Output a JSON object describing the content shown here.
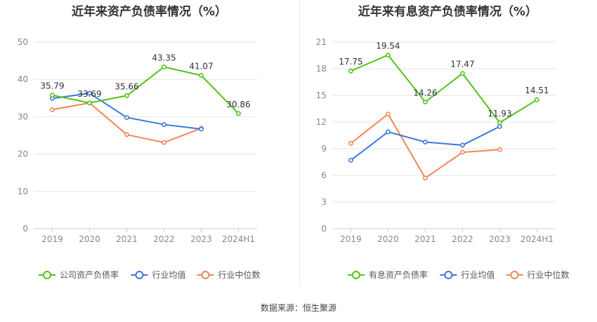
{
  "source_text": "数据来源：恒生聚源",
  "chart_data": [
    {
      "type": "line",
      "title": "近年来资产负债率情况（%）",
      "categories": [
        "2019",
        "2020",
        "2021",
        "2022",
        "2023",
        "2024H1"
      ],
      "yticks": [
        "0",
        "10",
        "20",
        "30",
        "40",
        "50"
      ],
      "ylim": [
        0,
        50
      ],
      "grid": true,
      "legend_position": "bottom",
      "series": [
        {
          "name": "公司资产负债率",
          "color": "#52c41a",
          "values": [
            35.79,
            33.69,
            35.66,
            43.35,
            41.07,
            30.86
          ],
          "labels": [
            "35.79",
            "33.69",
            "35.66",
            "43.35",
            "41.07",
            "30.86"
          ]
        },
        {
          "name": "行业均值",
          "color": "#3a78e0",
          "values": [
            34.9,
            36.3,
            29.8,
            27.9,
            26.7,
            null
          ],
          "labels": []
        },
        {
          "name": "行业中位数",
          "color": "#f0875a",
          "values": [
            31.9,
            33.7,
            25.2,
            23.1,
            26.9,
            null
          ],
          "labels": []
        }
      ]
    },
    {
      "type": "line",
      "title": "近年来有息资产负债率情况（%）",
      "categories": [
        "2019",
        "2020",
        "2021",
        "2022",
        "2023",
        "2024H1"
      ],
      "yticks": [
        "0",
        "3",
        "6",
        "9",
        "12",
        "15",
        "18",
        "21"
      ],
      "ylim": [
        0,
        21
      ],
      "grid": true,
      "legend_position": "bottom",
      "series": [
        {
          "name": "有息资产负债率",
          "color": "#52c41a",
          "values": [
            17.75,
            19.54,
            14.26,
            17.47,
            11.93,
            14.51
          ],
          "labels": [
            "17.75",
            "19.54",
            "14.26",
            "17.47",
            "11.93",
            "14.51"
          ]
        },
        {
          "name": "行业均值",
          "color": "#3a78e0",
          "values": [
            7.7,
            10.9,
            9.75,
            9.4,
            11.5,
            null
          ],
          "labels": []
        },
        {
          "name": "行业中位数",
          "color": "#f0875a",
          "values": [
            9.6,
            12.9,
            5.7,
            8.6,
            8.9,
            null
          ],
          "labels": []
        }
      ]
    }
  ]
}
